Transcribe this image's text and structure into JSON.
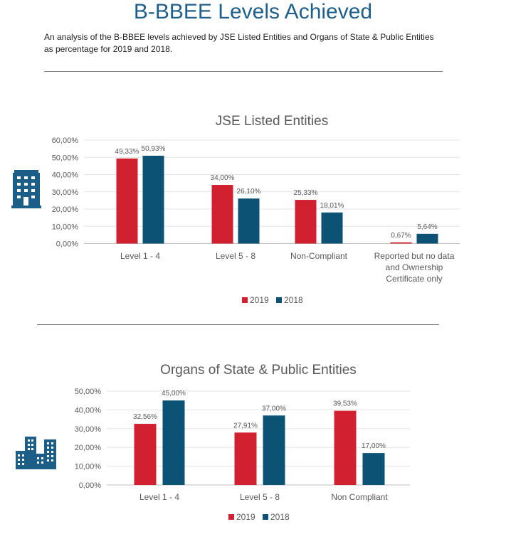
{
  "header": {
    "title": "B-BBEE Levels Achieved",
    "subtitle": "An analysis of the B-BBEE levels achieved by JSE Listed Entities and Organs of State & Public Entities as percentage for 2019 and 2018."
  },
  "icons": [
    "office-building-icon",
    "city-buildings-icon"
  ],
  "colors": {
    "title": "#1f5f8b",
    "series_2019": "#d1202f",
    "series_2018": "#0b5275",
    "icon": "#1b5e87"
  },
  "chart_data": [
    {
      "type": "bar",
      "title": "JSE Listed Entities",
      "categories": [
        "Level 1 - 4",
        "Level 5 - 8",
        "Non-Compliant",
        "Reported but no data and Ownership Certificate only"
      ],
      "series": [
        {
          "name": "2019",
          "values": [
            49.33,
            34.0,
            25.33,
            0.67
          ],
          "labels": [
            "49,33%",
            "34,00%",
            "25,33%",
            "0,67%"
          ],
          "color": "#d1202f"
        },
        {
          "name": "2018",
          "values": [
            50.93,
            26.1,
            18.01,
            5.64
          ],
          "labels": [
            "50,93%",
            "26,10%",
            "18,01%",
            "5,64%"
          ],
          "color": "#0b5275"
        }
      ],
      "yticks": [
        "0,00%",
        "10,00%",
        "20,00%",
        "30,00%",
        "40,00%",
        "50,00%",
        "60,00%"
      ],
      "ylim": [
        0,
        60
      ],
      "grid": true,
      "legend": "bottom"
    },
    {
      "type": "bar",
      "title": "Organs of State & Public Entities",
      "categories": [
        "Level 1 - 4",
        "Level 5 - 8",
        "Non Compliant"
      ],
      "series": [
        {
          "name": "2019",
          "values": [
            32.56,
            27.91,
            39.53
          ],
          "labels": [
            "32,56%",
            "27,91%",
            "39,53%"
          ],
          "color": "#d1202f"
        },
        {
          "name": "2018",
          "values": [
            45.0,
            37.0,
            17.0
          ],
          "labels": [
            "45,00%",
            "37,00%",
            "17,00%"
          ],
          "color": "#0b5275"
        }
      ],
      "yticks": [
        "0,00%",
        "10,00%",
        "20,00%",
        "30,00%",
        "40,00%",
        "50,00%"
      ],
      "ylim": [
        0,
        50
      ],
      "grid": true,
      "legend": "bottom"
    }
  ]
}
